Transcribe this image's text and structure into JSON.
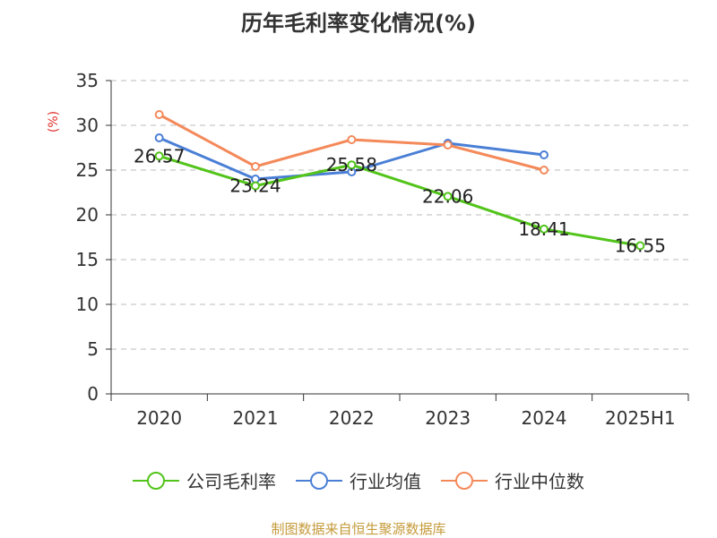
{
  "chart_data": {
    "type": "line",
    "title": "历年毛利率变化情况(%)",
    "unit_label": "(%)",
    "categories": [
      "2020",
      "2021",
      "2022",
      "2023",
      "2024",
      "2025H1"
    ],
    "ylim": [
      0,
      35
    ],
    "yticks": [
      0,
      5,
      10,
      15,
      20,
      25,
      30,
      35
    ],
    "grid": true,
    "legend_position": "bottom",
    "series": [
      {
        "name": "公司毛利率",
        "color": "#52c41a",
        "values": [
          26.57,
          23.24,
          25.58,
          22.06,
          18.41,
          16.55
        ],
        "data_labels": [
          "26.57",
          "23.24",
          "25.58",
          "22.06",
          "18.41",
          "16.55"
        ]
      },
      {
        "name": "行业均值",
        "color": "#4a7fd6",
        "values": [
          28.6,
          24.0,
          24.8,
          28.0,
          26.7,
          null
        ]
      },
      {
        "name": "行业中位数",
        "color": "#f4895a",
        "values": [
          31.2,
          25.4,
          28.4,
          27.8,
          25.0,
          null
        ]
      }
    ]
  },
  "source": "制图数据来自恒生聚源数据库"
}
